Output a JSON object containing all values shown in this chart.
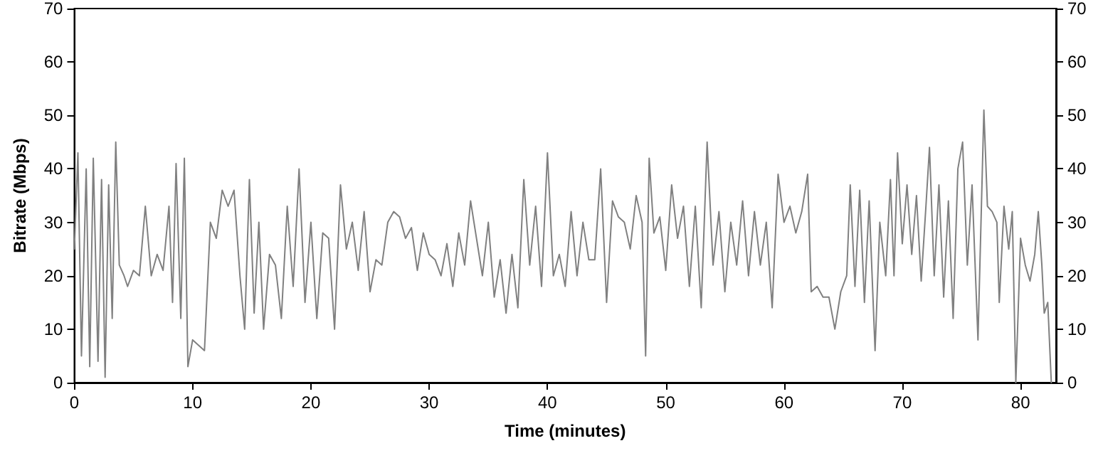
{
  "chart_data": {
    "type": "line",
    "xlabel": "Time (minutes)",
    "ylabel": "Bitrate (Mbps)",
    "xlim": [
      0,
      83
    ],
    "xticks": [
      0,
      10,
      20,
      30,
      40,
      50,
      60,
      70,
      80
    ],
    "ylim": [
      0,
      70
    ],
    "yticks": [
      0,
      10,
      20,
      30,
      40,
      50,
      60,
      70
    ],
    "y2lim": [
      0,
      70
    ],
    "y2ticks": [
      0,
      10,
      20,
      30,
      40,
      50,
      60,
      70
    ],
    "grid": false,
    "marker": "none",
    "line_style": "solid",
    "series": [
      {
        "color": "#808080",
        "x": [
          0,
          0.3,
          0.6,
          1.0,
          1.3,
          1.6,
          2.0,
          2.3,
          2.6,
          2.9,
          3.2,
          3.5,
          3.8,
          4.2,
          4.5,
          5,
          5.5,
          6,
          6.5,
          7,
          7.5,
          8,
          8.3,
          8.6,
          9,
          9.3,
          9.6,
          10,
          10.5,
          11,
          11.5,
          12,
          12.5,
          13,
          13.5,
          14,
          14.4,
          14.8,
          15.2,
          15.6,
          16,
          16.5,
          17,
          17.5,
          18,
          18.5,
          19,
          19.5,
          20,
          20.5,
          21,
          21.5,
          22,
          22.5,
          23,
          23.5,
          24,
          24.5,
          25,
          25.5,
          26,
          26.5,
          27,
          27.5,
          28,
          28.5,
          29,
          29.5,
          30,
          30.5,
          31,
          31.5,
          32,
          32.5,
          33,
          33.5,
          34,
          34.5,
          35,
          35.5,
          36,
          36.5,
          37,
          37.5,
          38,
          38.5,
          39,
          39.5,
          40,
          40.5,
          41,
          41.5,
          42,
          42.5,
          43,
          43.5,
          44,
          44.5,
          45,
          45.5,
          46,
          46.5,
          47,
          47.5,
          48,
          48.3,
          48.6,
          49,
          49.5,
          50,
          50.5,
          51,
          51.5,
          52,
          52.5,
          53,
          53.5,
          54,
          54.5,
          55,
          55.5,
          56,
          56.5,
          57,
          57.5,
          58,
          58.5,
          59,
          59.5,
          60,
          60.5,
          61,
          61.5,
          62,
          62.3,
          62.8,
          63.3,
          63.8,
          64.3,
          64.8,
          65.3,
          65.6,
          66,
          66.4,
          66.8,
          67.2,
          67.7,
          68.1,
          68.6,
          69,
          69.3,
          69.6,
          70,
          70.4,
          70.8,
          71.2,
          71.6,
          72,
          72.3,
          72.7,
          73.1,
          73.5,
          73.9,
          74.3,
          74.7,
          75.1,
          75.5,
          75.9,
          76.4,
          76.9,
          77.2,
          77.6,
          78,
          78.2,
          78.6,
          79,
          79.3,
          79.6,
          80,
          80.4,
          80.8,
          81.2,
          81.5,
          81.8,
          82,
          82.3,
          82.6
        ],
        "values": [
          25,
          43,
          5,
          40,
          3,
          42,
          4,
          38,
          1,
          37,
          12,
          45,
          22,
          20,
          18,
          21,
          20,
          33,
          20,
          24,
          21,
          33,
          15,
          41,
          12,
          42,
          3,
          8,
          7,
          6,
          30,
          27,
          36,
          33,
          36,
          20,
          10,
          38,
          13,
          30,
          10,
          24,
          22,
          12,
          33,
          18,
          40,
          15,
          30,
          12,
          28,
          27,
          10,
          37,
          25,
          30,
          21,
          32,
          17,
          23,
          22,
          30,
          32,
          31,
          27,
          29,
          21,
          28,
          24,
          23,
          20,
          26,
          18,
          28,
          22,
          34,
          27,
          20,
          30,
          16,
          23,
          13,
          24,
          14,
          38,
          22,
          33,
          18,
          43,
          20,
          24,
          18,
          32,
          20,
          30,
          23,
          23,
          40,
          15,
          34,
          31,
          30,
          25,
          35,
          30,
          5,
          42,
          28,
          31,
          21,
          37,
          27,
          33,
          18,
          33,
          14,
          45,
          22,
          32,
          17,
          30,
          22,
          34,
          20,
          32,
          22,
          30,
          14,
          39,
          30,
          33,
          28,
          32,
          39,
          17,
          18,
          16,
          16,
          10,
          17,
          20,
          37,
          18,
          36,
          15,
          34,
          6,
          30,
          20,
          38,
          20,
          43,
          26,
          37,
          24,
          35,
          19,
          33,
          44,
          20,
          37,
          16,
          34,
          12,
          40,
          45,
          22,
          37,
          8,
          51,
          33,
          32,
          30,
          15,
          33,
          25,
          32,
          0,
          27,
          22,
          19,
          24,
          32,
          22,
          13,
          15,
          0
        ]
      }
    ]
  }
}
